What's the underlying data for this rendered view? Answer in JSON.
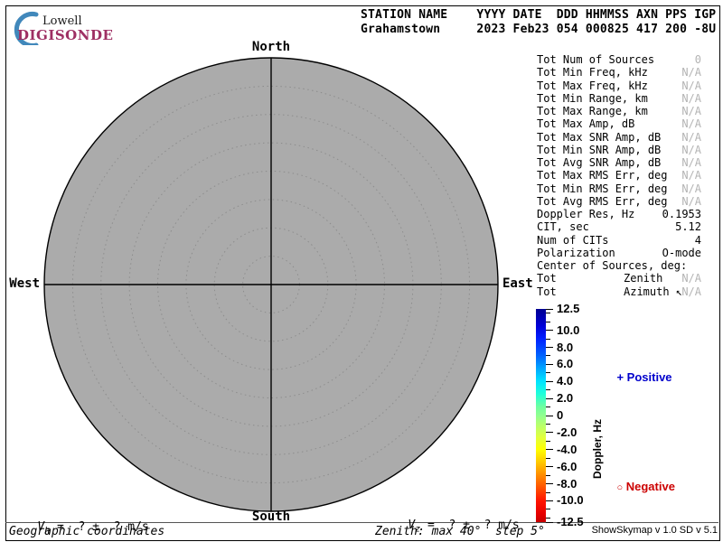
{
  "logo": {
    "top": "Lowell",
    "bottom": "DIGISONDE",
    "brand_color": "#9e2f63",
    "crescent_color": "#4188bb"
  },
  "header": {
    "line1": "STATION NAME    YYYY DATE  DDD HHMMSS AXN PPS IGP",
    "line2": "Grahamstown     2023 Feb23 054 000825 417 200 -8U"
  },
  "compass": {
    "north": "North",
    "south": "South",
    "east": "East",
    "west": "West"
  },
  "info_panel": {
    "rows": [
      {
        "label": "Tot Num of Sources",
        "value": "0",
        "na": true
      },
      {
        "label": "Tot Min Freq, kHz",
        "value": "N/A",
        "na": true
      },
      {
        "label": "Tot Max Freq, kHz",
        "value": "N/A",
        "na": true
      },
      {
        "label": "Tot Min Range, km",
        "value": "N/A",
        "na": true
      },
      {
        "label": "Tot Max Range, km",
        "value": "N/A",
        "na": true
      },
      {
        "label": "Tot Max Amp, dB",
        "value": "N/A",
        "na": true
      },
      {
        "label": "Tot Max SNR Amp, dB",
        "value": "N/A",
        "na": true
      },
      {
        "label": "Tot Min SNR Amp, dB",
        "value": "N/A",
        "na": true
      },
      {
        "label": "Tot Avg SNR Amp, dB",
        "value": "N/A",
        "na": true
      },
      {
        "label": "Tot Max RMS Err, deg",
        "value": "N/A",
        "na": true
      },
      {
        "label": "Tot Min RMS Err, deg",
        "value": "N/A",
        "na": true
      },
      {
        "label": "Tot Avg RMS Err, deg",
        "value": "N/A",
        "na": true
      },
      {
        "label": "Doppler Res, Hz",
        "value": "0.1953",
        "na": false
      },
      {
        "label": "CIT, sec",
        "value": "5.12",
        "na": false
      },
      {
        "label": "Num of CITs",
        "value": "4",
        "na": false
      },
      {
        "label": "Polarization",
        "value": "O-mode",
        "na": false
      },
      {
        "label": "Center of Sources, deg:",
        "value": "",
        "na": false
      },
      {
        "label": "Tot",
        "mid": "Zenith",
        "value": "N/A",
        "na": true
      },
      {
        "label": "Tot",
        "mid": "Azimuth ↖",
        "value": "N/A",
        "na": true
      }
    ]
  },
  "colorbar": {
    "title": "Doppler, Hz",
    "range": [
      -12.5,
      12.5
    ],
    "major_ticks": [
      {
        "v": 12.5,
        "label": "12.5"
      },
      {
        "v": 10,
        "label": "10.0"
      },
      {
        "v": 8,
        "label": "8.0"
      },
      {
        "v": 6,
        "label": "6.0"
      },
      {
        "v": 4,
        "label": "4.0"
      },
      {
        "v": 2,
        "label": "2.0"
      },
      {
        "v": 0,
        "label": "0"
      },
      {
        "v": -2,
        "label": "-2.0"
      },
      {
        "v": -4,
        "label": "-4.0"
      },
      {
        "v": -6,
        "label": "-6.0"
      },
      {
        "v": -8,
        "label": "-8.0"
      },
      {
        "v": -10,
        "label": "-10.0"
      },
      {
        "v": -12.5,
        "label": "-12.5"
      }
    ],
    "minor_ticks": [
      12,
      11,
      9,
      7,
      5,
      3,
      1,
      -1,
      -3,
      -5,
      -7,
      -9,
      -11,
      -12
    ],
    "positive": {
      "marker": "+",
      "label": "Positive",
      "color": "#0000cc"
    },
    "negative": {
      "marker": "○",
      "label": "Negative",
      "color": "#cc0000"
    }
  },
  "skymap": {
    "zenith_max_deg": 40,
    "zenith_step_deg": 5,
    "num_rings": 8,
    "fill_color": "#ababab"
  },
  "footer": {
    "vh": {
      "sym": "V",
      "sub": "h",
      "rest": "=  ? ±  ? m/s"
    },
    "vz": {
      "sym": "V",
      "sub": "z",
      "rest": "=  ? ±  ? m/s"
    },
    "coords": "Geographic coordinates",
    "zenith_info": "Zenith: max 40°  step 5°",
    "version": "ShowSkymap v 1.0   SD v 5.1"
  }
}
